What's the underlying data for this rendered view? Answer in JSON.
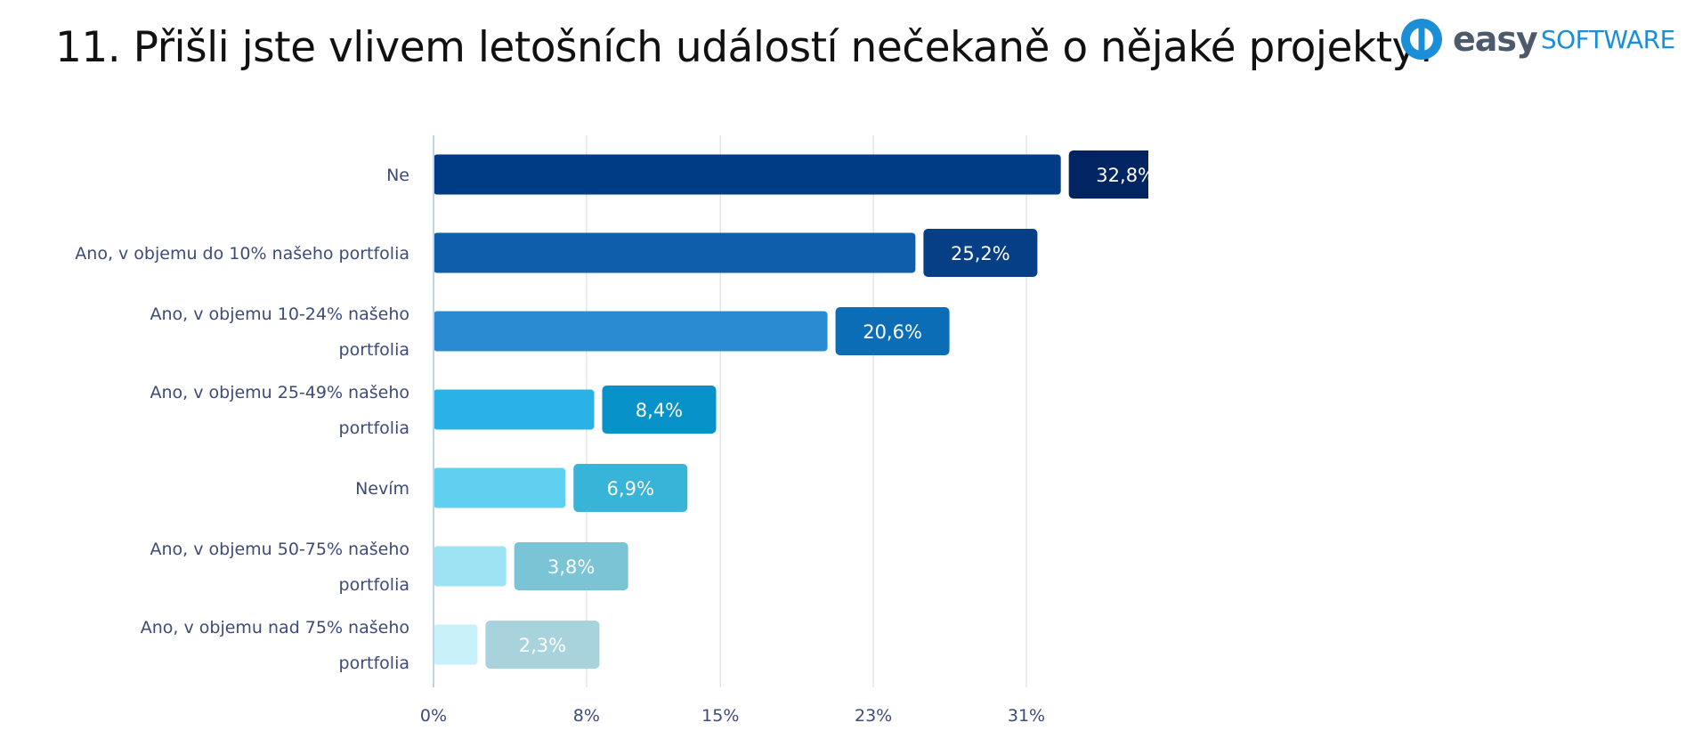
{
  "header": {
    "title": "11. Přišli jste vlivem letošních událostí nečekaně o nějaké projekty?",
    "logo_word": "easy",
    "logo_suffix": "SOFTWARE"
  },
  "chart_data": {
    "type": "bar",
    "orientation": "horizontal",
    "title": "11. Přišli jste vlivem letošních událostí nečekaně o nějaké projekty?",
    "categories": [
      "Ne",
      "Ano, v objemu do 10% našeho portfolia",
      "Ano, v objemu 10-24% našeho portfolia",
      "Ano, v objemu 25-49% našeho portfolia",
      "Nevím",
      "Ano, v objemu 50-75% našeho portfolia",
      "Ano, v objemu nad 75% našeho portfolia"
    ],
    "category_label_lines": [
      [
        "Ne"
      ],
      [
        "Ano, v objemu do 10% našeho portfolia"
      ],
      [
        "Ano, v objemu 10-24% našeho",
        "portfolia"
      ],
      [
        "Ano, v objemu 25-49% našeho",
        "portfolia"
      ],
      [
        "Nevím"
      ],
      [
        "Ano, v objemu 50-75% našeho",
        "portfolia"
      ],
      [
        "Ano, v objemu nad 75% našeho",
        "portfolia"
      ]
    ],
    "values": [
      32.8,
      25.2,
      20.6,
      8.4,
      6.9,
      3.8,
      2.3
    ],
    "value_labels": [
      "32,8%",
      "25,2%",
      "20,6%",
      "8,4%",
      "6,9%",
      "3,8%",
      "2,3%"
    ],
    "xticks": [
      0,
      8,
      15,
      23,
      31
    ],
    "xtick_labels": [
      "0%",
      "8%",
      "15%",
      "23%",
      "31%"
    ],
    "xlim": [
      0,
      31
    ],
    "grid": true,
    "bar_colors": [
      "#003b85",
      "#0e5eab",
      "#2b8bd2",
      "#2ab1e6",
      "#5fd0ef",
      "#9ee3f4",
      "#c9f1f9"
    ],
    "badge_colors": [
      "#012463",
      "#063f86",
      "#0a6db6",
      "#0792c9",
      "#38b4d8",
      "#7ac4d6",
      "#a8d3dc"
    ],
    "axis_color": "#bcd4ec",
    "grid_color": "#e2e6ec"
  },
  "colors": {
    "label_text": "#3e4a78",
    "logo_blue": "#1a8fd8",
    "logo_gray": "#4d5a6b"
  }
}
